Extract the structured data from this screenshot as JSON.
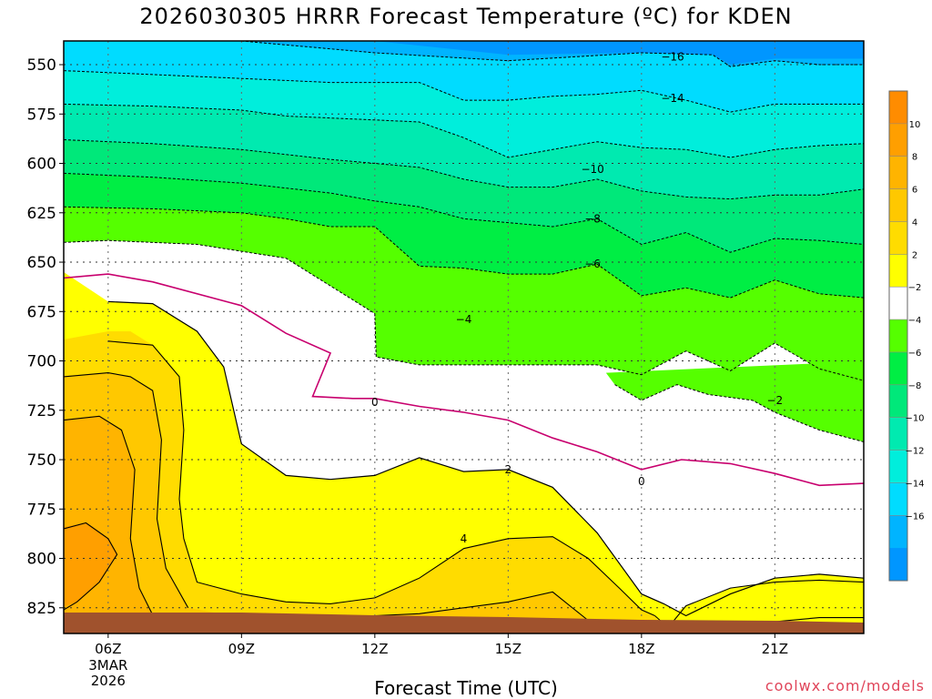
{
  "title": "2026030305 HRRR Forecast Temperature (ºC) for KDEN",
  "xlabel": "Forecast Time (UTC)",
  "credit": "coolwx.com/models",
  "chart_data": {
    "type": "contour",
    "xlabel": "Forecast Time (UTC)",
    "ylabel": "",
    "x_range_hours_utc": [
      5,
      23
    ],
    "y_range_hpa": [
      838,
      538
    ],
    "yticks": [
      550,
      575,
      600,
      625,
      650,
      675,
      700,
      725,
      750,
      775,
      800,
      825
    ],
    "xticks": [
      {
        "hour": 6,
        "label": "06Z",
        "sub": [
          "3MAR",
          "2026"
        ]
      },
      {
        "hour": 9,
        "label": "09Z"
      },
      {
        "hour": 12,
        "label": "12Z"
      },
      {
        "hour": 15,
        "label": "15Z"
      },
      {
        "hour": 18,
        "label": "18Z"
      },
      {
        "hour": 21,
        "label": "21Z"
      }
    ],
    "colorbar": {
      "boundaries": [
        -18,
        -16,
        -14,
        -12,
        -10,
        -8,
        -6,
        -4,
        -2,
        2,
        4,
        6,
        8,
        10,
        12
      ],
      "tick_labels": [
        "10",
        "8",
        "6",
        "4",
        "2",
        "−2",
        "−4",
        "−6",
        "−8",
        "−10",
        "−12",
        "−14",
        "−16"
      ],
      "colors": [
        "#ff8c00",
        "#ff9f00",
        "#ffb400",
        "#ffc800",
        "#ffdc00",
        "#ffff00",
        "#ffffff",
        "#55ff00",
        "#00ee44",
        "#00e87a",
        "#00eab0",
        "#00eedc",
        "#00dcff",
        "#00b4ff",
        "#0096ff"
      ]
    },
    "contour_labels": [
      {
        "value": "-16",
        "hour": 18.7,
        "hpa": 546
      },
      {
        "value": "-14",
        "hour": 18.7,
        "hpa": 567
      },
      {
        "value": "-10",
        "hour": 16.9,
        "hpa": 603
      },
      {
        "value": "-8",
        "hour": 16.9,
        "hpa": 628
      },
      {
        "value": "-6",
        "hour": 16.9,
        "hpa": 651
      },
      {
        "value": "-4",
        "hour": 14.0,
        "hpa": 679
      },
      {
        "value": "-2",
        "hour": 21.0,
        "hpa": 720
      },
      {
        "value": "0",
        "hour": 12.0,
        "hpa": 721
      },
      {
        "value": "0",
        "hour": 18.0,
        "hpa": 761
      },
      {
        "value": "2",
        "hour": 15.0,
        "hpa": 755
      },
      {
        "value": "4",
        "hour": 14.0,
        "hpa": 790
      }
    ],
    "isotherm_traces": {
      "temp_-16": {
        "hours": [
          5,
          9,
          12,
          15,
          16.5,
          18,
          19.6,
          20,
          21,
          22,
          23
        ],
        "hpa": [
          538,
          538,
          544,
          548,
          546,
          544,
          545,
          551,
          548,
          550,
          550
        ]
      },
      "temp_-14": {
        "hours": [
          5,
          7,
          9,
          11,
          13,
          14,
          15,
          16,
          17,
          18,
          19,
          20,
          21,
          22,
          23
        ],
        "hpa": [
          553,
          555,
          557,
          559,
          559,
          568,
          568,
          566,
          565,
          563,
          568,
          574,
          570,
          570,
          570
        ]
      },
      "temp_-12": {
        "hours": [
          5,
          7,
          9,
          10,
          12,
          13,
          14,
          15,
          16,
          17,
          18,
          19,
          20,
          21,
          22,
          23
        ],
        "hpa": [
          570,
          571,
          573,
          576,
          578,
          579,
          587,
          597,
          593,
          589,
          592,
          593,
          597,
          593,
          591,
          590
        ]
      },
      "temp_-10": {
        "hours": [
          5,
          7,
          9,
          11,
          12,
          13,
          14,
          15,
          16,
          17,
          18,
          19,
          20,
          21,
          22,
          23
        ],
        "hpa": [
          588,
          590,
          593,
          598,
          600,
          602,
          608,
          612,
          612,
          608,
          614,
          617,
          618,
          616,
          616,
          613
        ]
      },
      "temp_-8": {
        "hours": [
          5,
          7,
          9,
          11,
          12,
          13,
          14,
          15,
          16,
          17,
          18,
          19,
          20,
          21,
          22,
          23
        ],
        "hpa": [
          605,
          607,
          610,
          615,
          619,
          622,
          628,
          630,
          632,
          628,
          641,
          635,
          645,
          638,
          639,
          641
        ]
      },
      "temp_-6": {
        "hours": [
          5,
          7,
          9,
          10,
          11,
          12,
          13,
          14,
          15,
          16,
          17,
          18,
          19,
          20,
          21,
          22,
          23
        ],
        "hpa": [
          622,
          623,
          625,
          628,
          632,
          632,
          652,
          653,
          656,
          656,
          651,
          667,
          663,
          668,
          659,
          666,
          668
        ]
      },
      "temp_-4": {
        "hours": [
          5,
          6,
          8,
          10,
          11,
          12,
          12.03,
          13,
          14,
          16,
          17,
          18,
          19,
          20,
          21,
          22,
          23
        ],
        "hpa": [
          640,
          639,
          641,
          648,
          662,
          676,
          698,
          702,
          702,
          702,
          702,
          707,
          695,
          705,
          691,
          704,
          710
        ]
      },
      "temp_-2": {
        "hours": [
          17.4,
          18,
          18.8,
          19.5,
          20.5,
          21,
          22,
          23
        ],
        "hpa": [
          712,
          720,
          712,
          717,
          720,
          726,
          735,
          741
        ]
      },
      "temp_0": {
        "hours": [
          5,
          6,
          7,
          9,
          10,
          11,
          10.6,
          11.5,
          12,
          13,
          14,
          15,
          16,
          17,
          18,
          18.9,
          20,
          21,
          22,
          23
        ],
        "hpa": [
          658,
          656,
          660,
          672,
          686,
          696,
          718,
          719,
          719,
          723,
          726,
          730,
          739,
          746,
          755,
          750,
          752,
          757,
          763,
          762
        ]
      },
      "temp_2": {
        "hours": [
          6,
          7,
          8,
          8.6,
          9,
          10,
          11,
          12,
          13,
          14,
          15,
          16,
          17,
          18,
          18.5,
          19,
          20,
          21,
          22,
          23
        ],
        "hpa": [
          670,
          671,
          685,
          703,
          742,
          758,
          760,
          758,
          749,
          756,
          755,
          764,
          787,
          818,
          823,
          829,
          818,
          810,
          808,
          810
        ]
      }
    }
  }
}
